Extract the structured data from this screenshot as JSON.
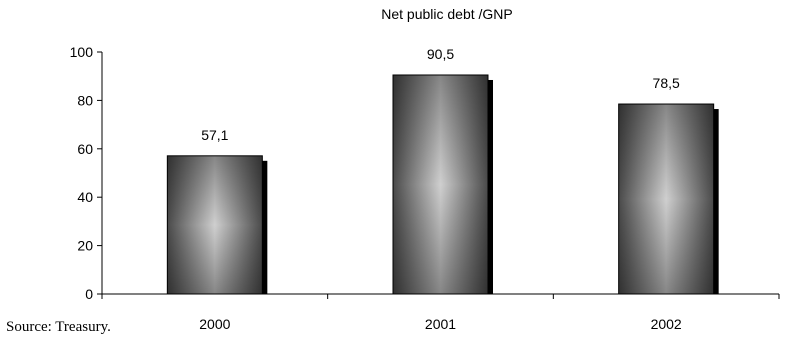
{
  "chart_data": {
    "type": "bar",
    "title": "Net public debt /GNP",
    "categories": [
      "2000",
      "2001",
      "2002"
    ],
    "values": [
      57.1,
      90.5,
      78.5
    ],
    "value_labels": [
      "57,1",
      "90,5",
      "78,5"
    ],
    "yticks": [
      0,
      20,
      40,
      60,
      80,
      100
    ],
    "ylim": [
      0,
      100
    ],
    "xlabel": "",
    "ylabel": "",
    "grid": false,
    "legend": "none"
  },
  "source_note": "Source: Treasury.",
  "colors": {
    "bar_edge": "#000000",
    "bar_dark": "#505050",
    "bar_light": "#c9c9c9",
    "shadow": "#000000"
  }
}
